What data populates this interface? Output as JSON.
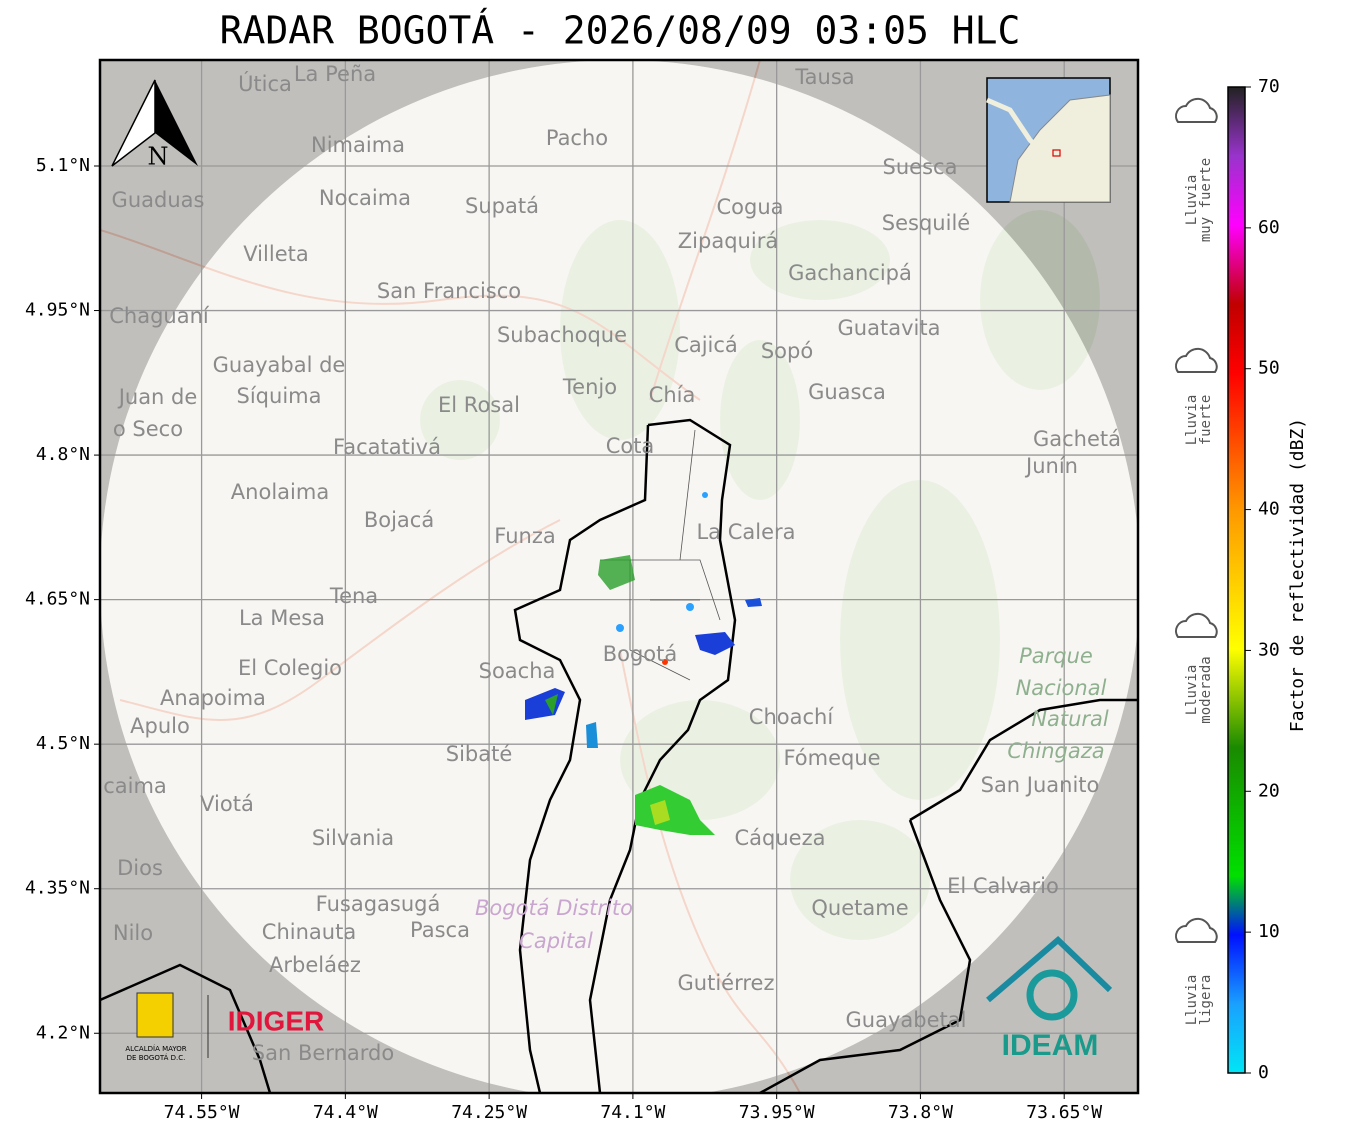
{
  "title": "RADAR BOGOTÁ - 2026/08/09 03:05 HLC",
  "map": {
    "xlim": [
      -74.656,
      -73.573
    ],
    "ylim": [
      4.138,
      5.21
    ],
    "xticks": [
      {
        "value": -74.55,
        "label": "74.55°W"
      },
      {
        "value": -74.4,
        "label": "74.4°W"
      },
      {
        "value": -74.25,
        "label": "74.25°W"
      },
      {
        "value": -74.1,
        "label": "74.1°W"
      },
      {
        "value": -73.95,
        "label": "73.95°W"
      },
      {
        "value": -73.8,
        "label": "73.8°W"
      },
      {
        "value": -73.65,
        "label": "73.65°W"
      }
    ],
    "yticks": [
      {
        "value": 4.2,
        "label": "4.2°N"
      },
      {
        "value": 4.35,
        "label": "4.35°N"
      },
      {
        "value": 4.5,
        "label": "4.5°N"
      },
      {
        "value": 4.65,
        "label": "4.65°N"
      },
      {
        "value": 4.8,
        "label": "4.8°N"
      },
      {
        "value": 4.95,
        "label": "4.95°N"
      },
      {
        "value": 5.1,
        "label": "5.1°N"
      }
    ],
    "north": "N",
    "places": [
      "Útica",
      "La Peña",
      "Tausa",
      "Pacho",
      "Nimaima",
      "Guaduas",
      "Nocaima",
      "Supatá",
      "Cogua",
      "Suesca",
      "Sesquilé",
      "Zipaquirá",
      "Villeta",
      "Gachancipá",
      "San Francisco",
      "Chaguaní",
      "Guatavita",
      "Subachoque",
      "Cajicá",
      "Sopó",
      "Guayabal de",
      "Síquima",
      "Tenjo",
      "Chía",
      "Guasca",
      "Juan de",
      "o Seco",
      "El Rosal",
      "Facatativá",
      "Cota",
      "Gachetá",
      "Junín",
      "Anolaima",
      "Bojacá",
      "Funza",
      "La Calera",
      "Tena",
      "La Mesa",
      "Bogotá",
      "Soacha",
      "El Colegio",
      "Anapoima",
      "Apulo",
      "Choachí",
      "Sibaté",
      "Fómeque",
      "San Juanito",
      "caima",
      "Viotá",
      "Cáqueza",
      "Silvania",
      "Dios",
      "El Calvario",
      "Fusagasugá",
      "Quetame",
      "Nilo",
      "Chinauta",
      "Pasca",
      "Arbeláez",
      "Gutiérrez",
      "Guayabetal",
      "San Bernardo"
    ],
    "park": [
      "Parque",
      "Nacional",
      "Natural",
      "Chingaza"
    ],
    "district": [
      "Bogotá Distrito",
      "Capital"
    ]
  },
  "logos": {
    "alcaldia": [
      "ALCALDÍA MAYOR",
      "DE BOGOTÁ D.C."
    ],
    "idiger": "IDIGER",
    "ideam": "IDEAM"
  },
  "colorbar": {
    "label": "Factor de reflectividad (dBZ)",
    "lim": [
      0,
      70
    ],
    "ticks": [
      0,
      10,
      20,
      30,
      40,
      50,
      60,
      70
    ]
  },
  "rain_levels": [
    [
      "Lluvia",
      "muy fuerte"
    ],
    [
      "Lluvia",
      "fuerte"
    ],
    [
      "Lluvia",
      "moderada"
    ],
    [
      "Lluvia",
      "ligera"
    ]
  ]
}
